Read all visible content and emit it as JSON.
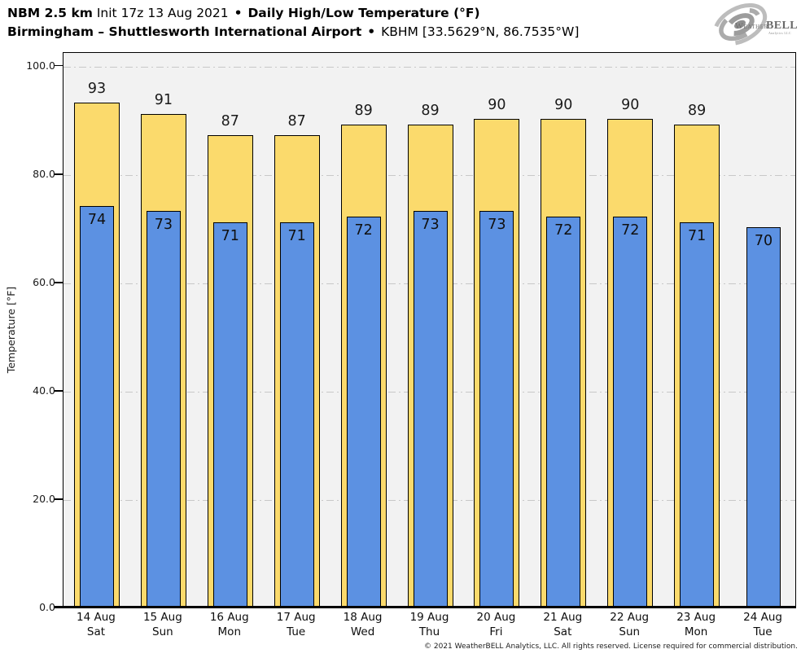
{
  "header": {
    "model": "NBM 2.5 km",
    "init": "Init 17z 13 Aug 2021",
    "sep": "•",
    "product": "Daily High/Low Temperature (°F)",
    "station": "Birmingham – Shuttlesworth International Airport",
    "station_meta": "KBHM [33.5629°N, 86.7535°W]"
  },
  "logo": {
    "brand_weather": "Weather",
    "brand_bell": "BELL",
    "brand_sub": "Analytics LLC"
  },
  "chart_data": {
    "type": "bar",
    "title": "NBM 2.5 km Init 17z 13 Aug 2021 • Daily High/Low Temperature (°F)",
    "subtitle": "Birmingham – Shuttlesworth International Airport • KBHM [33.5629°N, 86.7535°W]",
    "xlabel": "",
    "ylabel": "Temperature [°F]",
    "ylim": [
      0,
      102.5
    ],
    "yticks": [
      0,
      20,
      40,
      60,
      80,
      100
    ],
    "ytick_labels": [
      "0.0",
      "20.0",
      "40.0",
      "60.0",
      "80.0",
      "100.0"
    ],
    "grid": "horizontal dash-dot every 20 units",
    "legend_position": "none",
    "categories": [
      "14 Aug",
      "15 Aug",
      "16 Aug",
      "17 Aug",
      "18 Aug",
      "19 Aug",
      "20 Aug",
      "21 Aug",
      "22 Aug",
      "23 Aug",
      "24 Aug"
    ],
    "days": [
      "Sat",
      "Sun",
      "Mon",
      "Tue",
      "Wed",
      "Thu",
      "Fri",
      "Sat",
      "Sun",
      "Mon",
      "Tue"
    ],
    "series": [
      {
        "name": "Daily High",
        "color": "#fbda6c",
        "values": [
          93,
          91,
          87,
          87,
          89,
          89,
          90,
          90,
          90,
          89,
          null
        ]
      },
      {
        "name": "Daily Low",
        "color": "#5c91e2",
        "values": [
          74,
          73,
          71,
          71,
          72,
          73,
          73,
          72,
          72,
          71,
          70
        ]
      }
    ]
  },
  "colors": {
    "high_bar": "#fbda6c",
    "low_bar": "#5c91e2",
    "bar_border": "#000000",
    "plot_background": "#f2f2f2",
    "gridline": "#c8c8c8",
    "page_background": "#ffffff"
  },
  "footer": {
    "copyright": "© 2021 WeatherBELL Analytics, LLC. All rights reserved. License required for commercial distribution."
  }
}
